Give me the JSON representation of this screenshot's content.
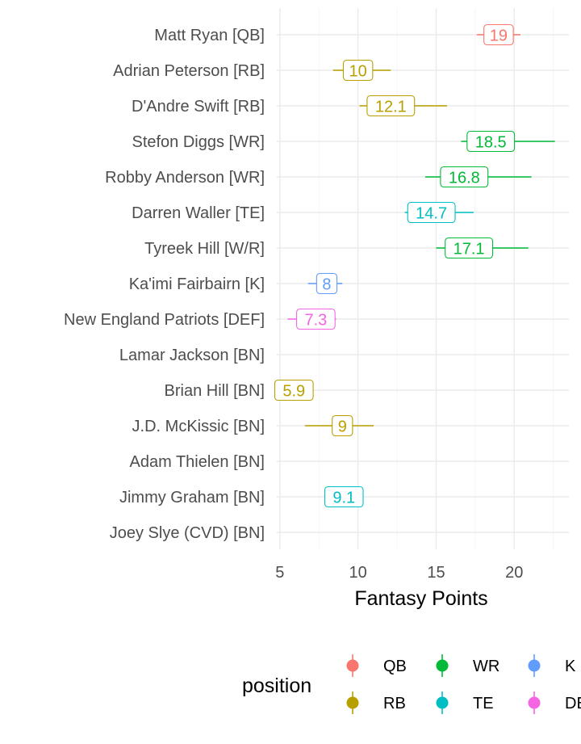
{
  "chart_data": {
    "type": "scatter",
    "xlabel": "Fantasy Points",
    "xlim": [
      4.8,
      23.5
    ],
    "xticks": [
      5,
      10,
      15,
      20
    ],
    "grid": true,
    "legend_title": "position",
    "legend_position": "bottom",
    "legend": [
      {
        "name": "QB",
        "color": "#F8766D"
      },
      {
        "name": "RB",
        "color": "#B79F00"
      },
      {
        "name": "WR",
        "color": "#00BA38"
      },
      {
        "name": "TE",
        "color": "#00BFC4"
      },
      {
        "name": "K",
        "color": "#619CFF"
      },
      {
        "name": "DEF",
        "color": "#F564E3"
      }
    ],
    "players": [
      {
        "name": "Matt Ryan [QB]",
        "position": "QB",
        "value": 19,
        "label": "19",
        "low": 17.6,
        "high": 20.4
      },
      {
        "name": "Adrian Peterson [RB]",
        "position": "RB",
        "value": 10,
        "label": "10",
        "low": 8.4,
        "high": 12.1
      },
      {
        "name": "D'Andre Swift [RB]",
        "position": "RB",
        "value": 12.1,
        "label": "12.1",
        "low": 10.1,
        "high": 15.7
      },
      {
        "name": "Stefon Diggs [WR]",
        "position": "WR",
        "value": 18.5,
        "label": "18.5",
        "low": 16.6,
        "high": 22.6
      },
      {
        "name": "Robby Anderson [WR]",
        "position": "WR",
        "value": 16.8,
        "label": "16.8",
        "low": 14.3,
        "high": 21.1
      },
      {
        "name": "Darren Waller [TE]",
        "position": "TE",
        "value": 14.7,
        "label": "14.7",
        "low": 13.0,
        "high": 17.4
      },
      {
        "name": "Tyreek Hill [W/R]",
        "position": "WR",
        "value": 17.1,
        "label": "17.1",
        "low": 15.0,
        "high": 20.9
      },
      {
        "name": "Ka'imi Fairbairn [K]",
        "position": "K",
        "value": 8,
        "label": "8",
        "low": 6.8,
        "high": 9.0
      },
      {
        "name": "New England Patriots [DEF]",
        "position": "DEF",
        "value": 7.3,
        "label": "7.3",
        "low": 5.5,
        "high": 8.6
      },
      {
        "name": "Lamar Jackson [BN]",
        "position": "BN",
        "value": null,
        "label": "",
        "low": null,
        "high": null
      },
      {
        "name": "Brian Hill [BN]",
        "position": "RB",
        "value": 5.9,
        "label": "5.9",
        "low": 5.0,
        "high": 6.5
      },
      {
        "name": "J.D. McKissic [BN]",
        "position": "RB",
        "value": 9,
        "label": "9",
        "low": 6.6,
        "high": 11.0
      },
      {
        "name": "Adam Thielen [BN]",
        "position": "BN",
        "value": null,
        "label": "",
        "low": null,
        "high": null
      },
      {
        "name": "Jimmy Graham [BN]",
        "position": "TE",
        "value": 9.1,
        "label": "9.1",
        "low": 8.0,
        "high": 10.3
      },
      {
        "name": "Joey Slye (CVD) [BN]",
        "position": "BN",
        "value": null,
        "label": "",
        "low": null,
        "high": null
      }
    ]
  }
}
